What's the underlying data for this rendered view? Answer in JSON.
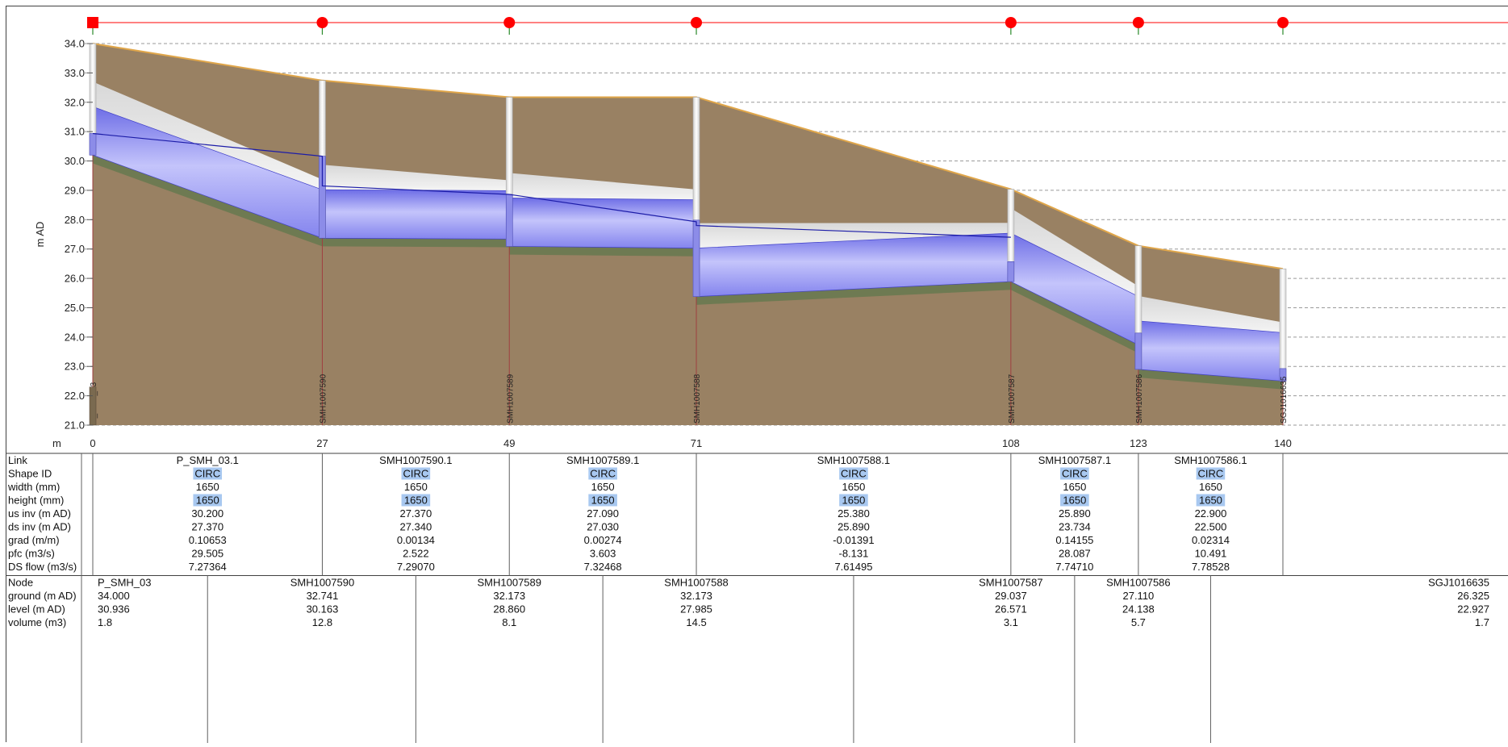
{
  "chart_data": {
    "type": "long-section",
    "ylabel": "m AD",
    "xlabel": "m",
    "ylim": [
      21.0,
      34.0
    ],
    "xlim": [
      0,
      140
    ],
    "yticks": [
      "34.0",
      "33.0",
      "32.0",
      "31.0",
      "30.0",
      "29.0",
      "28.0",
      "27.0",
      "26.0",
      "25.0",
      "24.0",
      "23.0",
      "22.0",
      "21.0"
    ],
    "xticks": [
      "0",
      "27",
      "49",
      "71",
      "108",
      "123",
      "140"
    ],
    "grid": true,
    "colors": {
      "ground": "#998163",
      "ground_line": "#e0a64a",
      "pipe": "#9c9cf0",
      "pipe_edge": "#4040c8",
      "hgl": "#1c1ca8",
      "invert_band": "#6e7a52",
      "manhole": "#f2f2f2",
      "node_marker": "#ff0000"
    },
    "nodes": [
      {
        "x": 0,
        "name": "P_SMH_03",
        "ground": 34.0,
        "level": 30.936,
        "volume": "1.8",
        "shaft_bottom": 30.2,
        "shape": "square"
      },
      {
        "x": 27,
        "name": "SMH1007590",
        "ground": 32.741,
        "level": 30.163,
        "volume": "12.8",
        "shaft_bottom": 27.37,
        "shape": "circle"
      },
      {
        "x": 49,
        "name": "SMH1007589",
        "ground": 32.173,
        "level": 28.86,
        "volume": "8.1",
        "shaft_bottom": 27.09,
        "shape": "circle"
      },
      {
        "x": 71,
        "name": "SMH1007588",
        "ground": 32.173,
        "level": 27.985,
        "volume": "14.5",
        "shaft_bottom": 25.38,
        "shape": "circle"
      },
      {
        "x": 108,
        "name": "SMH1007587",
        "ground": 29.037,
        "level": 26.571,
        "volume": "3.1",
        "shaft_bottom": 25.89,
        "shape": "circle"
      },
      {
        "x": 123,
        "name": "SMH1007586",
        "ground": 27.11,
        "level": 24.138,
        "volume": "5.7",
        "shaft_bottom": 22.9,
        "shape": "circle"
      },
      {
        "x": 140,
        "name": "SGJ1016635",
        "ground": 26.325,
        "level": 22.927,
        "volume": "1.7",
        "shaft_bottom": 22.5,
        "shape": "circle"
      }
    ],
    "links": [
      {
        "x0": 0,
        "x1": 27,
        "id": "P_SMH_03.1",
        "shape": "CIRC",
        "width": "1650",
        "height": "1650",
        "us_inv": "30.200",
        "ds_inv": "27.370",
        "grad": "0.10653",
        "pfc": "29.505",
        "ds_flow": "7.27364"
      },
      {
        "x0": 27,
        "x1": 49,
        "id": "SMH1007590.1",
        "shape": "CIRC",
        "width": "1650",
        "height": "1650",
        "us_inv": "27.370",
        "ds_inv": "27.340",
        "grad": "0.00134",
        "pfc": "2.522",
        "ds_flow": "7.29070"
      },
      {
        "x0": 49,
        "x1": 71,
        "id": "SMH1007589.1",
        "shape": "CIRC",
        "width": "1650",
        "height": "1650",
        "us_inv": "27.090",
        "ds_inv": "27.030",
        "grad": "0.00274",
        "pfc": "3.603",
        "ds_flow": "7.32468"
      },
      {
        "x0": 71,
        "x1": 108,
        "id": "SMH1007588.1",
        "shape": "CIRC",
        "width": "1650",
        "height": "1650",
        "us_inv": "25.380",
        "ds_inv": "25.890",
        "grad": "-0.01391",
        "pfc": "-8.131",
        "ds_flow": "7.61495"
      },
      {
        "x0": 108,
        "x1": 123,
        "id": "SMH1007587.1",
        "shape": "CIRC",
        "width": "1650",
        "height": "1650",
        "us_inv": "25.890",
        "ds_inv": "23.734",
        "grad": "0.14155",
        "pfc": "28.087",
        "ds_flow": "7.74710"
      },
      {
        "x0": 123,
        "x1": 140,
        "id": "SMH1007586.1",
        "shape": "CIRC",
        "width": "1650",
        "height": "1650",
        "us_inv": "22.900",
        "ds_inv": "22.500",
        "grad": "0.02314",
        "pfc": "10.491",
        "ds_flow": "7.78528"
      }
    ],
    "hgl_extra": [
      {
        "x": 27,
        "level": 29.15
      },
      {
        "x": 71,
        "level": 27.8
      },
      {
        "x": 108,
        "level": 27.4
      },
      {
        "x": 123,
        "level": 24.55
      }
    ]
  },
  "link_table": {
    "row_labels": [
      "Link",
      "Shape ID",
      "width (mm)",
      "height (mm)",
      "us inv (m AD)",
      "ds inv (m AD)",
      "grad (m/m)",
      "pfc (m3/s)",
      "DS flow (m3/s)"
    ],
    "keys": [
      "id",
      "shape",
      "width",
      "height",
      "us_inv",
      "ds_inv",
      "grad",
      "pfc",
      "ds_flow"
    ],
    "highlight_keys": [
      "shape",
      "height"
    ],
    "highlight_color": "#a8c8f0"
  },
  "node_table": {
    "row_labels": [
      "Node",
      "ground (m AD)",
      "level (m AD)",
      "volume (m3)"
    ],
    "keys": [
      "name",
      "ground",
      "level",
      "volume"
    ],
    "decimals": {
      "ground": 3,
      "level": 3
    }
  }
}
